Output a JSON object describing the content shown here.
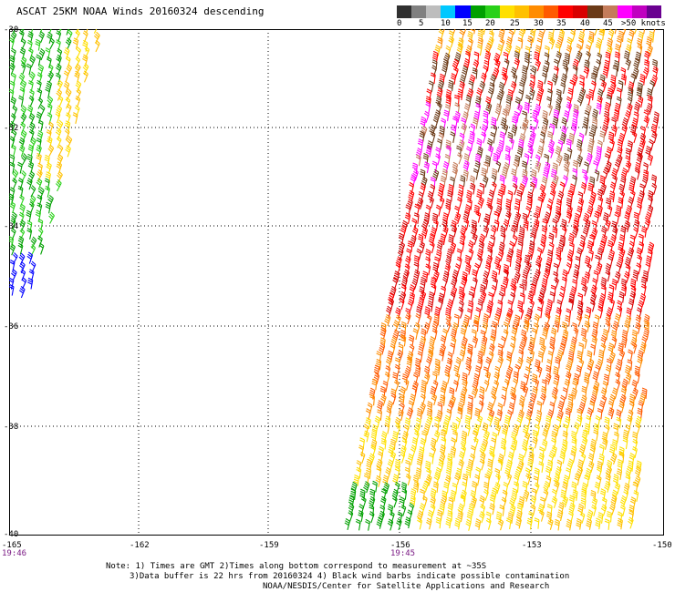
{
  "title": "ASCAT 25KM NOAA Winds 20160324 descending",
  "colorbar": {
    "colors": [
      "#303030",
      "#808080",
      "#bdbdbd",
      "#00c8ff",
      "#0000ff",
      "#00a000",
      "#29d119",
      "#ffe000",
      "#ffc000",
      "#ff8c00",
      "#ff5a00",
      "#ff0000",
      "#d80000",
      "#6b3a17",
      "#c47c5a",
      "#ff00ff",
      "#c000c0",
      "#6a0090"
    ],
    "labels": [
      "0",
      "5",
      "10",
      "15",
      "20",
      "25",
      "30",
      "35",
      "40",
      "45",
      ">50 knots"
    ]
  },
  "map": {
    "lat_labels": [
      "-30",
      "-32",
      "-34",
      "-36",
      "-38",
      "-40"
    ],
    "lon_labels": [
      "-165",
      "-162",
      "-159",
      "-156",
      "-153",
      "-150"
    ],
    "time_labels": [
      "19:46",
      "19:45"
    ],
    "regions": [
      {
        "name": "west-swath",
        "colors": [
          "#00a000",
          "#29d119",
          "#ffe000",
          "#ffc000",
          "#0000ff"
        ]
      },
      {
        "name": "east-swath",
        "colors": [
          "#ffe000",
          "#ffc000",
          "#ff8c00",
          "#ff5a00",
          "#ff0000",
          "#d80000",
          "#6b3a17",
          "#c47c5a",
          "#ff00ff",
          "#00a000"
        ]
      }
    ]
  },
  "notes": {
    "line1": "Note: 1) Times are GMT 2)Times along bottom correspond to measurement at ~35S",
    "line2": "3)Data buffer is 22 hrs from 20160324 4) Black wind barbs indicate possible contamination",
    "line3": "NOAA/NESDIS/Center for Satellite Applications and Research"
  }
}
